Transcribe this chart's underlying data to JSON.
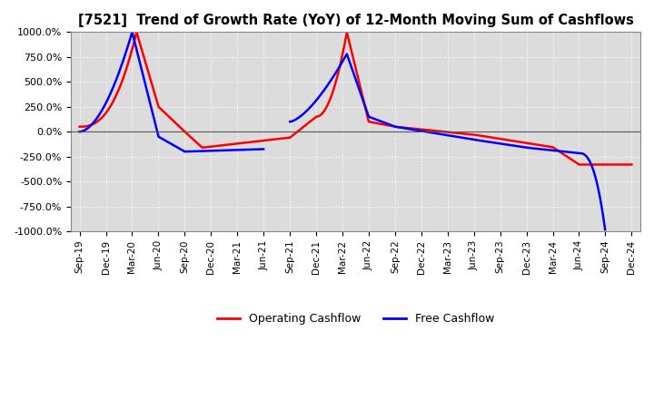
{
  "title": "[7521]  Trend of Growth Rate (YoY) of 12-Month Moving Sum of Cashflows",
  "ylim": [
    -1000,
    1000
  ],
  "yticks": [
    -1000,
    -750,
    -500,
    -250,
    0,
    250,
    500,
    750,
    1000
  ],
  "ytick_labels": [
    "-1000.0%",
    "-750.0%",
    "-500.0%",
    "-250.0%",
    "0.0%",
    "250.0%",
    "500.0%",
    "750.0%",
    "1000.0%"
  ],
  "background_color": "#ffffff",
  "plot_bg_color": "#dcdcdc",
  "grid_color": "#ffffff",
  "line_color_op": "#ff0000",
  "line_color_free": "#0000ff",
  "legend_labels": [
    "Operating Cashflow",
    "Free Cashflow"
  ],
  "x_labels": [
    "Sep-19",
    "Dec-19",
    "Mar-20",
    "Jun-20",
    "Sep-20",
    "Dec-20",
    "Mar-21",
    "Jun-21",
    "Sep-21",
    "Dec-21",
    "Mar-22",
    "Jun-22",
    "Sep-22",
    "Dec-22",
    "Mar-23",
    "Jun-23",
    "Sep-23",
    "Dec-23",
    "Mar-24",
    "Jun-24",
    "Sep-24",
    "Dec-24"
  ]
}
